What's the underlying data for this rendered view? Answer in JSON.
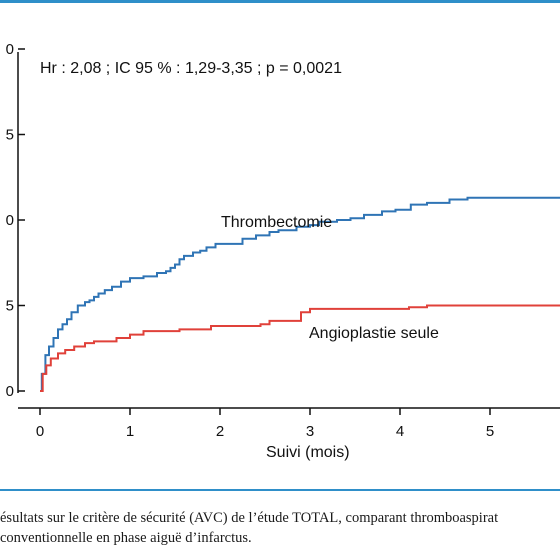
{
  "colors": {
    "rule": "#2f8fc9",
    "thrombectomie": "#2f74b5",
    "angioplastie": "#e0413a",
    "axis": "#111111"
  },
  "caption": {
    "line1": "ésultats sur le critère de sécurité (AVC) de l’étude TOTAL, comparant thromboaspirat",
    "line2": "conventionnelle en phase aiguë d’infarctus."
  },
  "chart_data": {
    "type": "line",
    "annotation": "Hr : 2,08 ; IC 95 % : 1,29-3,35 ; p = 0,0021",
    "xlabel": "Suivi (mois)",
    "ylabel": "",
    "x_ticks": [
      "0",
      "1",
      "2",
      "3",
      "4",
      "5"
    ],
    "y_ticks": [
      "0",
      "5",
      "0",
      "5",
      "0"
    ],
    "xlim": [
      -0.4,
      5.8
    ],
    "ylim": [
      -0.1,
      1.0
    ],
    "grid": false,
    "series": [
      {
        "name": "Thrombectomie",
        "step": true,
        "x": [
          0,
          0.02,
          0.06,
          0.1,
          0.15,
          0.2,
          0.25,
          0.3,
          0.35,
          0.42,
          0.5,
          0.55,
          0.6,
          0.65,
          0.72,
          0.8,
          0.9,
          1.0,
          1.1,
          1.15,
          1.3,
          1.4,
          1.45,
          1.5,
          1.55,
          1.6,
          1.7,
          1.78,
          1.85,
          1.95,
          2.05,
          2.25,
          2.4,
          2.55,
          2.65,
          2.85,
          3.0,
          3.1,
          3.3,
          3.45,
          3.6,
          3.8,
          3.95,
          4.12,
          4.3,
          4.55,
          4.75,
          5.3,
          5.8
        ],
        "y": [
          0.0,
          0.1,
          0.21,
          0.26,
          0.31,
          0.36,
          0.39,
          0.42,
          0.46,
          0.5,
          0.52,
          0.53,
          0.55,
          0.57,
          0.59,
          0.61,
          0.64,
          0.66,
          0.66,
          0.67,
          0.69,
          0.7,
          0.72,
          0.74,
          0.77,
          0.79,
          0.81,
          0.82,
          0.84,
          0.86,
          0.86,
          0.89,
          0.91,
          0.93,
          0.94,
          0.96,
          0.97,
          0.99,
          1.0,
          1.01,
          1.03,
          1.05,
          1.06,
          1.09,
          1.1,
          1.12,
          1.13,
          1.13,
          1.13
        ],
        "end_x": 5.8
      },
      {
        "name": "Angioplastie seule",
        "step": true,
        "x": [
          0,
          0.03,
          0.07,
          0.12,
          0.2,
          0.28,
          0.38,
          0.5,
          0.6,
          0.85,
          1.0,
          1.15,
          1.55,
          1.9,
          2.45,
          2.55,
          2.9,
          3.0,
          3.3,
          4.1,
          4.3,
          5.8
        ],
        "y": [
          0.0,
          0.1,
          0.15,
          0.19,
          0.22,
          0.24,
          0.26,
          0.28,
          0.29,
          0.31,
          0.33,
          0.35,
          0.36,
          0.38,
          0.39,
          0.41,
          0.46,
          0.48,
          0.48,
          0.49,
          0.5,
          0.5
        ],
        "end_x": 5.8
      }
    ]
  }
}
